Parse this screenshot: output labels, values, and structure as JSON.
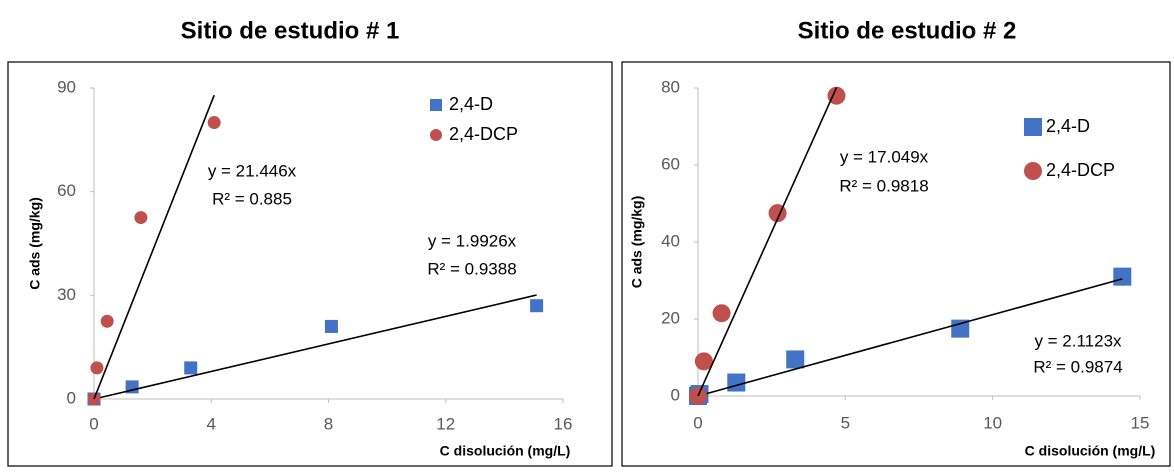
{
  "chart_data": [
    {
      "type": "scatter",
      "title": "Sitio de estudio # 1",
      "x_label": "C disolución (mg/L)",
      "y_label": "C ads (mg/kg)",
      "xlim": [
        0,
        16
      ],
      "xticks": [
        0,
        4,
        8,
        12,
        16
      ],
      "ylim": [
        0,
        90
      ],
      "yticks": [
        0,
        30,
        60,
        90
      ],
      "series": [
        {
          "name": "2,4-D",
          "color": "#4472c4",
          "marker": "square",
          "x": [
            0,
            1.3,
            3.3,
            8.1,
            15.1
          ],
          "values": [
            0,
            3.5,
            9,
            21,
            27
          ],
          "trendline_slope": 1.9926,
          "trendline_label": "y = 1.9926x",
          "r2_label": "R² = 0.9388"
        },
        {
          "name": "2,4-DCP",
          "color": "#c0504d",
          "marker": "circle",
          "x": [
            0,
            0.1,
            0.45,
            1.6,
            4.1
          ],
          "values": [
            0,
            9,
            22.5,
            52.5,
            80
          ],
          "trendline_slope": 21.446,
          "trendline_label": "y = 21.446x",
          "r2_label": "R² = 0.885"
        }
      ]
    },
    {
      "type": "scatter",
      "title": "Sitio de estudio # 2",
      "x_label": "C disolución (mg/L)",
      "y_label": "C ads (mg/kg)",
      "xlim": [
        0,
        15
      ],
      "xticks": [
        0,
        5,
        10,
        15
      ],
      "ylim": [
        0,
        80
      ],
      "yticks": [
        0,
        20,
        40,
        60,
        80
      ],
      "series": [
        {
          "name": "2,4-D",
          "color": "#4472c4",
          "marker": "square",
          "x": [
            0,
            0.05,
            1.3,
            3.3,
            8.9,
            14.4
          ],
          "values": [
            0,
            0.5,
            3.5,
            9.5,
            17.5,
            31
          ],
          "trendline_slope": 2.1123,
          "trendline_label": "y = 2.1123x",
          "r2_label": "R² = 0.9874"
        },
        {
          "name": "2,4-DCP",
          "color": "#c0504d",
          "marker": "circle",
          "x": [
            0,
            0.2,
            0.8,
            2.7,
            4.7
          ],
          "values": [
            0,
            9,
            21.5,
            47.5,
            78
          ],
          "trendline_slope": 17.049,
          "trendline_label": "y = 17.049x",
          "r2_label": "R² = 0.9818"
        }
      ]
    }
  ]
}
